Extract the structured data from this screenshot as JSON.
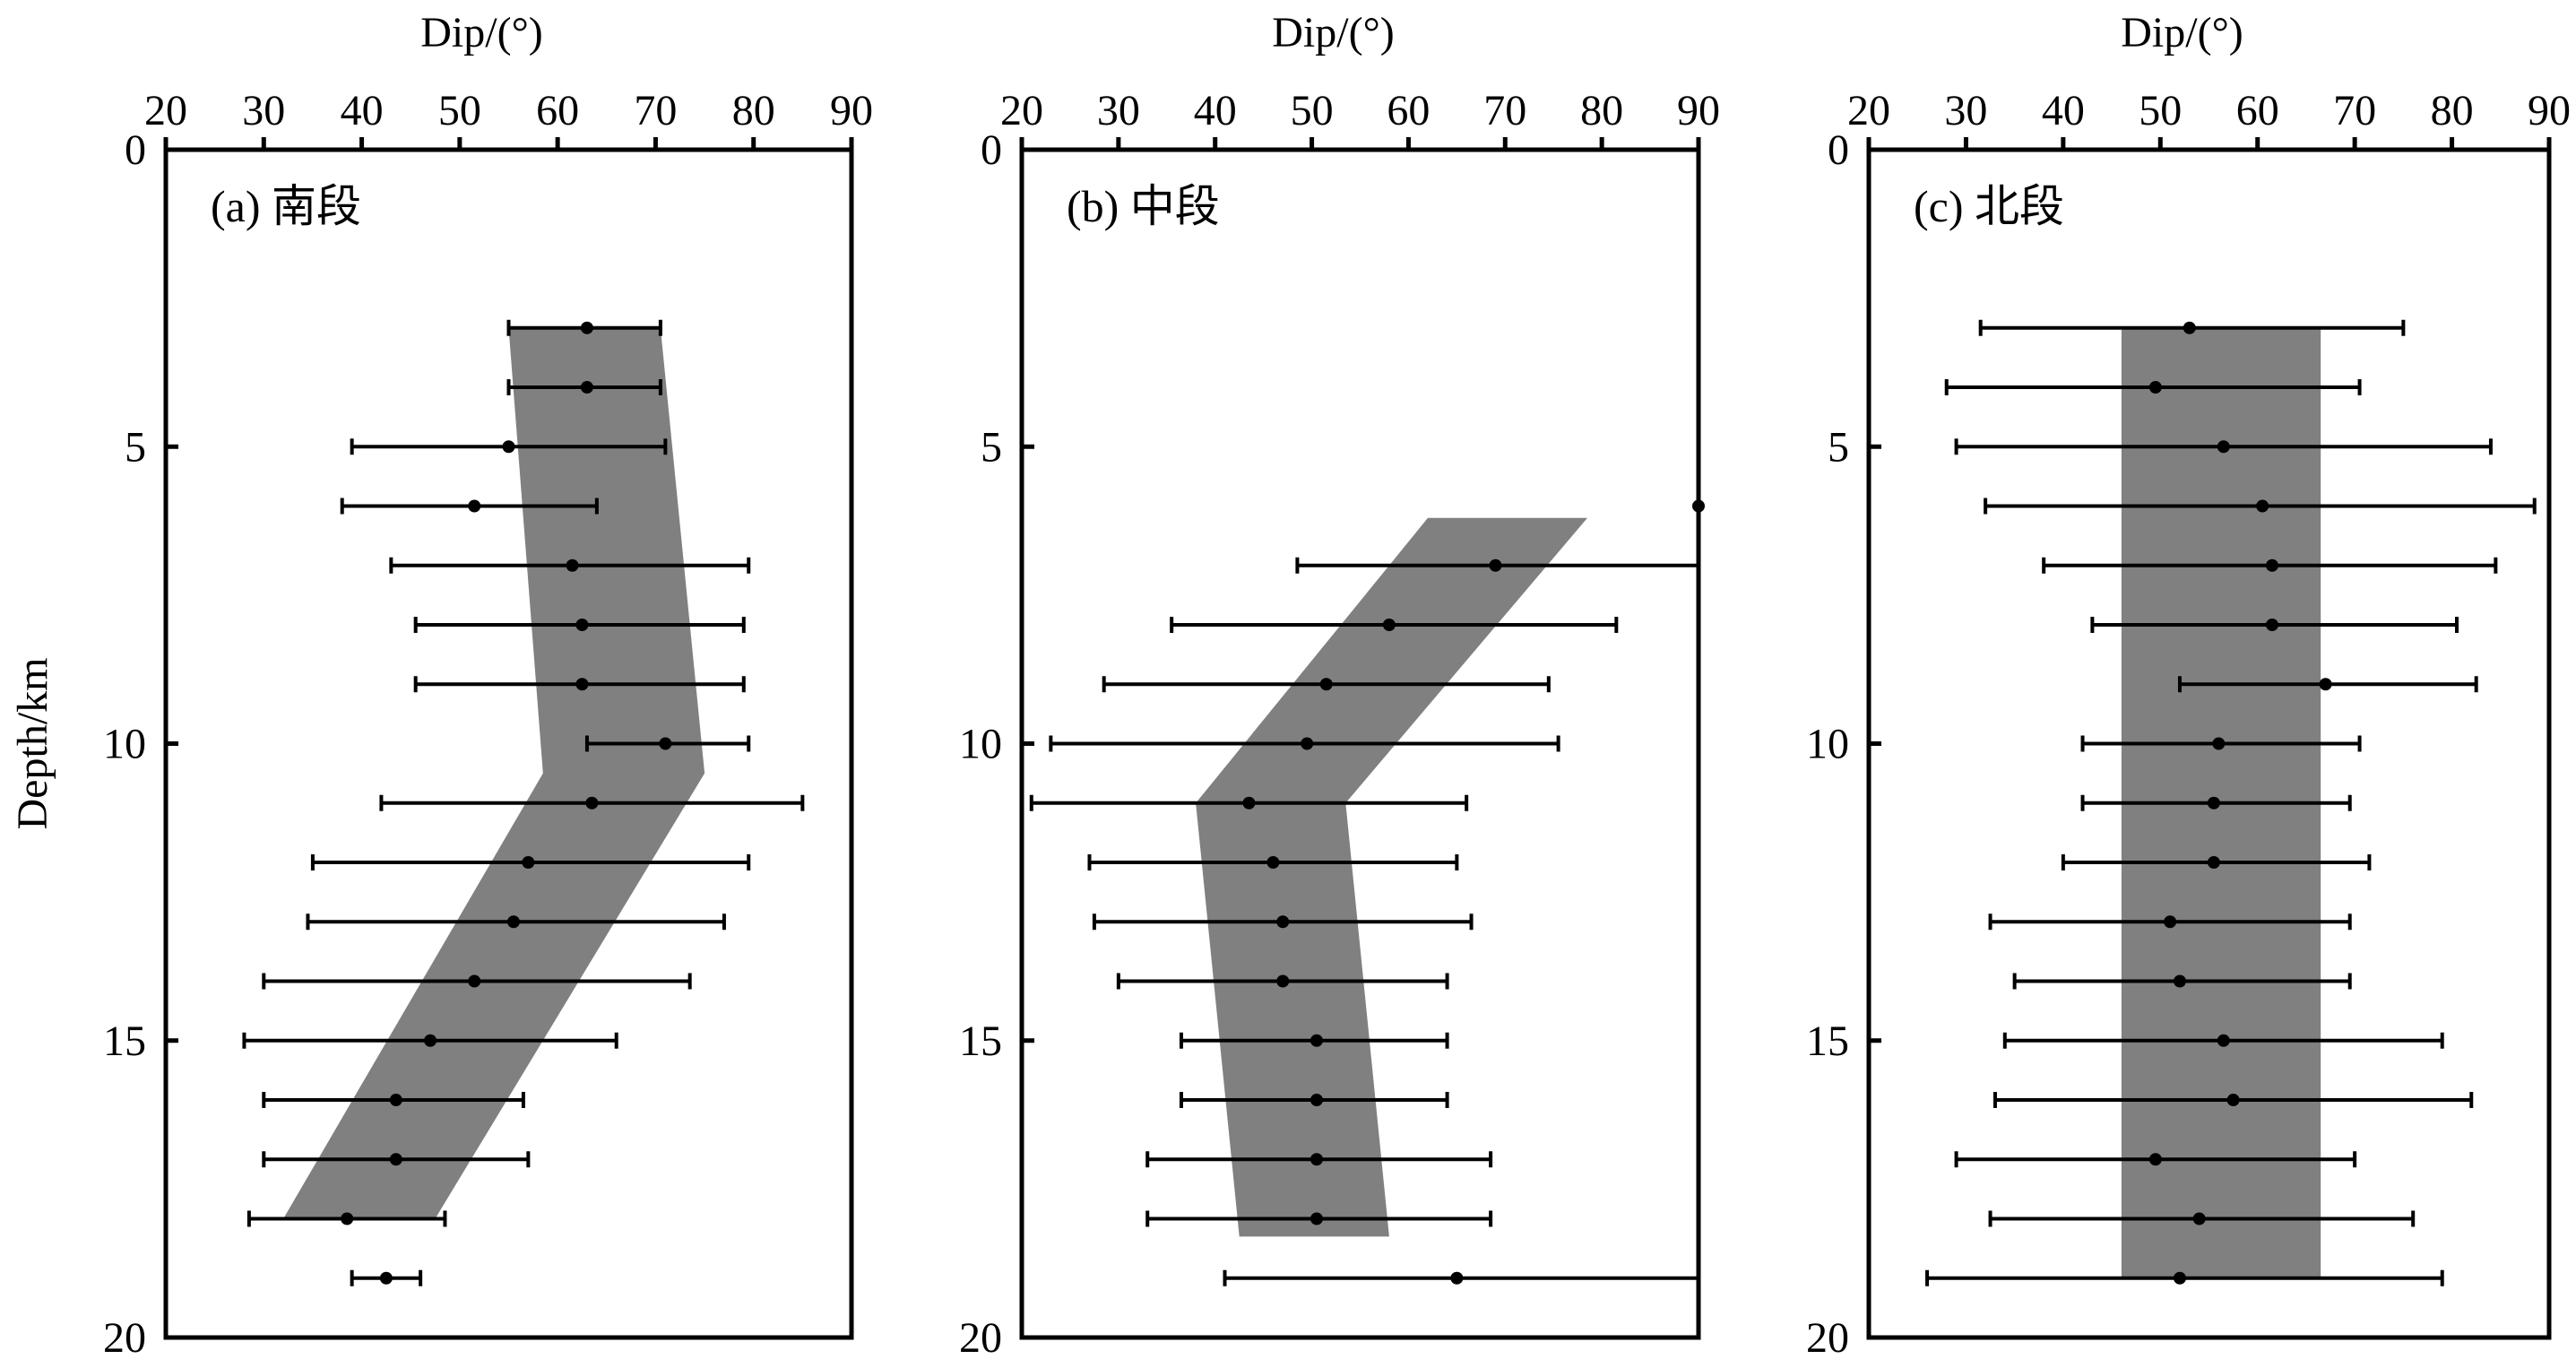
{
  "chart_data": [
    {
      "type": "scatter",
      "panel_label": "(a) 南段",
      "title": "Dip/(°)",
      "ylabel": "Depth/km",
      "xlim": [
        20,
        90
      ],
      "ylim": [
        0,
        20
      ],
      "x_ticks": [
        20,
        30,
        40,
        50,
        60,
        70,
        80,
        90
      ],
      "y_ticks": [
        0,
        5,
        10,
        15,
        20
      ],
      "band": [
        [
          55,
          3
        ],
        [
          70.5,
          3
        ],
        [
          75,
          10.5
        ],
        [
          47.5,
          18
        ],
        [
          32,
          18
        ],
        [
          58.5,
          10.5
        ]
      ],
      "points": [
        {
          "depth": 3,
          "dip": 63,
          "min": 55,
          "max": 70.5
        },
        {
          "depth": 4,
          "dip": 63,
          "min": 55,
          "max": 70.5
        },
        {
          "depth": 5,
          "dip": 55,
          "min": 39,
          "max": 71
        },
        {
          "depth": 6,
          "dip": 51.5,
          "min": 38,
          "max": 64
        },
        {
          "depth": 7,
          "dip": 61.5,
          "min": 43,
          "max": 79.5
        },
        {
          "depth": 8,
          "dip": 62.5,
          "min": 45.5,
          "max": 79
        },
        {
          "depth": 9,
          "dip": 62.5,
          "min": 45.5,
          "max": 79
        },
        {
          "depth": 10,
          "dip": 71,
          "min": 63,
          "max": 79.5
        },
        {
          "depth": 11,
          "dip": 63.5,
          "min": 42,
          "max": 85
        },
        {
          "depth": 12,
          "dip": 57,
          "min": 35,
          "max": 79.5
        },
        {
          "depth": 13,
          "dip": 55.5,
          "min": 34.5,
          "max": 77
        },
        {
          "depth": 14,
          "dip": 51.5,
          "min": 30,
          "max": 73.5
        },
        {
          "depth": 15,
          "dip": 47,
          "min": 28,
          "max": 66
        },
        {
          "depth": 16,
          "dip": 43.5,
          "min": 30,
          "max": 56.5
        },
        {
          "depth": 17,
          "dip": 43.5,
          "min": 30,
          "max": 57
        },
        {
          "depth": 18,
          "dip": 38.5,
          "min": 28.5,
          "max": 48.5
        },
        {
          "depth": 19,
          "dip": 42.5,
          "min": 39,
          "max": 46
        }
      ]
    },
    {
      "type": "scatter",
      "panel_label": "(b) 中段",
      "title": "Dip/(°)",
      "ylabel": "",
      "xlim": [
        20,
        90
      ],
      "ylim": [
        0,
        20
      ],
      "x_ticks": [
        20,
        30,
        40,
        50,
        60,
        70,
        80,
        90
      ],
      "y_ticks": [
        0,
        5,
        10,
        15,
        20
      ],
      "band": [
        [
          62,
          6.2
        ],
        [
          78.5,
          6.2
        ],
        [
          53.5,
          11
        ],
        [
          58,
          18.3
        ],
        [
          42.5,
          18.3
        ],
        [
          38,
          11
        ]
      ],
      "points": [
        {
          "depth": 6,
          "dip": 90,
          "min": 90,
          "max": 90
        },
        {
          "depth": 7,
          "dip": 69,
          "min": 48.5,
          "max": 90
        },
        {
          "depth": 8,
          "dip": 58,
          "min": 35.5,
          "max": 81.5
        },
        {
          "depth": 9,
          "dip": 51.5,
          "min": 28.5,
          "max": 74.5
        },
        {
          "depth": 10,
          "dip": 49.5,
          "min": 23,
          "max": 75.5
        },
        {
          "depth": 11,
          "dip": 43.5,
          "min": 21,
          "max": 66
        },
        {
          "depth": 12,
          "dip": 46,
          "min": 27,
          "max": 65
        },
        {
          "depth": 13,
          "dip": 47,
          "min": 27.5,
          "max": 66.5
        },
        {
          "depth": 14,
          "dip": 47,
          "min": 30,
          "max": 64
        },
        {
          "depth": 15,
          "dip": 50.5,
          "min": 36.5,
          "max": 64
        },
        {
          "depth": 16,
          "dip": 50.5,
          "min": 36.5,
          "max": 64
        },
        {
          "depth": 17,
          "dip": 50.5,
          "min": 33,
          "max": 68.5
        },
        {
          "depth": 18,
          "dip": 50.5,
          "min": 33,
          "max": 68.5
        },
        {
          "depth": 19,
          "dip": 65,
          "min": 41,
          "max": 90
        }
      ]
    },
    {
      "type": "scatter",
      "panel_label": "(c) 北段",
      "title": "Dip/(°)",
      "ylabel": "",
      "xlim": [
        20,
        90
      ],
      "ylim": [
        0,
        20
      ],
      "x_ticks": [
        20,
        30,
        40,
        50,
        60,
        70,
        80,
        90
      ],
      "y_ticks": [
        0,
        5,
        10,
        15,
        20
      ],
      "band": [
        [
          46,
          3
        ],
        [
          66.5,
          3
        ],
        [
          66.5,
          19
        ],
        [
          46,
          19
        ]
      ],
      "points": [
        {
          "depth": 3,
          "dip": 53,
          "min": 31.5,
          "max": 75
        },
        {
          "depth": 4,
          "dip": 49.5,
          "min": 28,
          "max": 70.5
        },
        {
          "depth": 5,
          "dip": 56.5,
          "min": 29,
          "max": 84
        },
        {
          "depth": 6,
          "dip": 60.5,
          "min": 32,
          "max": 88.5
        },
        {
          "depth": 7,
          "dip": 61.5,
          "min": 38,
          "max": 84.5
        },
        {
          "depth": 8,
          "dip": 61.5,
          "min": 43,
          "max": 80.5
        },
        {
          "depth": 9,
          "dip": 67,
          "min": 52,
          "max": 82.5
        },
        {
          "depth": 10,
          "dip": 56,
          "min": 42,
          "max": 70.5
        },
        {
          "depth": 11,
          "dip": 55.5,
          "min": 42,
          "max": 69.5
        },
        {
          "depth": 12,
          "dip": 55.5,
          "min": 40,
          "max": 71.5
        },
        {
          "depth": 13,
          "dip": 51,
          "min": 32.5,
          "max": 69.5
        },
        {
          "depth": 14,
          "dip": 52,
          "min": 35,
          "max": 69.5
        },
        {
          "depth": 15,
          "dip": 56.5,
          "min": 34,
          "max": 79
        },
        {
          "depth": 16,
          "dip": 57.5,
          "min": 33,
          "max": 82
        },
        {
          "depth": 17,
          "dip": 49.5,
          "min": 29,
          "max": 70
        },
        {
          "depth": 18,
          "dip": 54,
          "min": 32.5,
          "max": 76
        },
        {
          "depth": 19,
          "dip": 52,
          "min": 26,
          "max": 79
        }
      ]
    }
  ]
}
